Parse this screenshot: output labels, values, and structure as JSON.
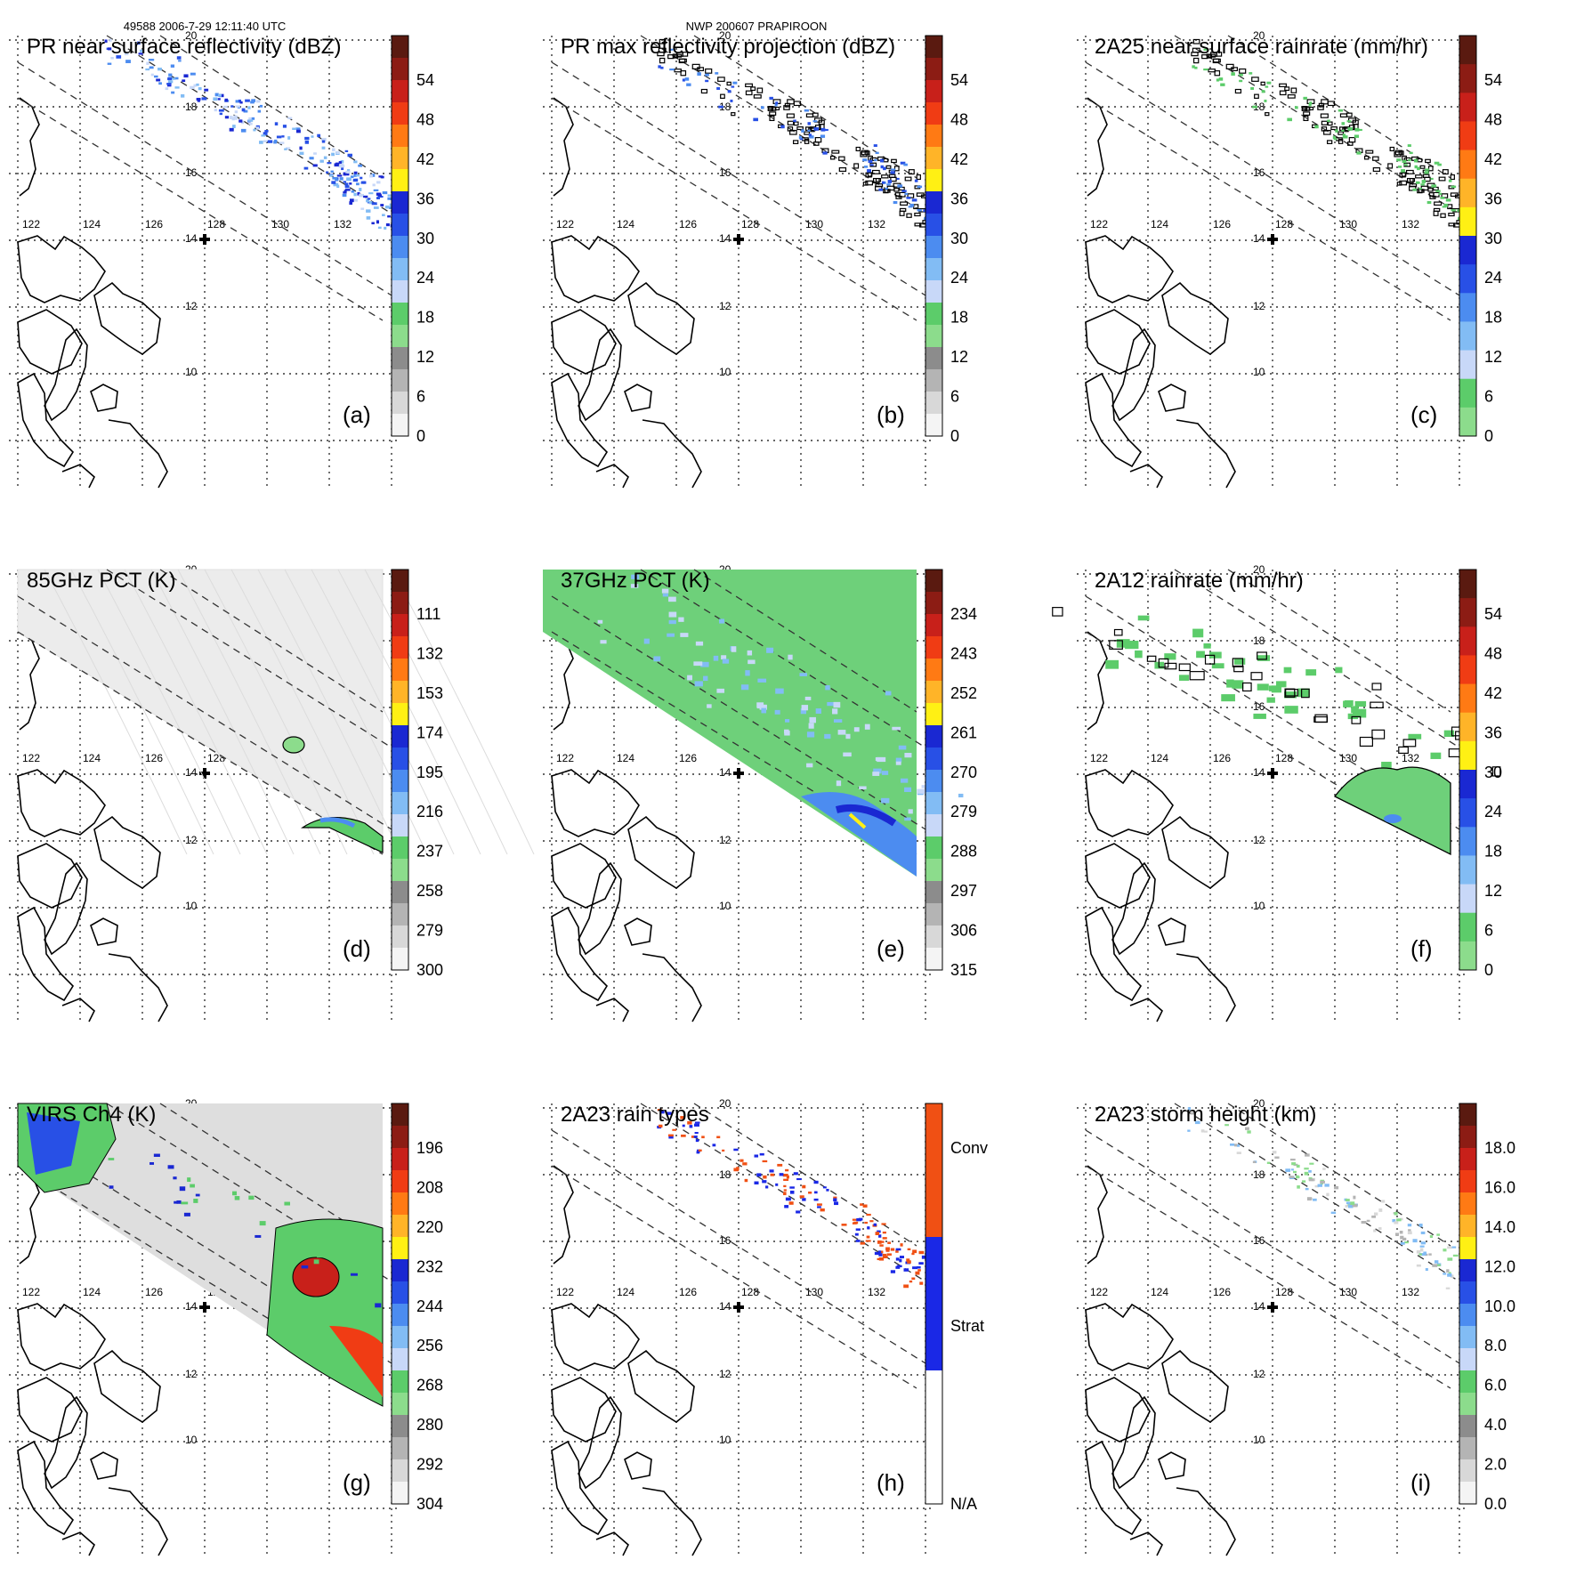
{
  "header": {
    "orbit_info": "49588 2006-7-29 12:11:40 UTC",
    "storm_info": "NWP 200607 PRAPIROON"
  },
  "axes": {
    "lon_labels": [
      "122",
      "124",
      "126",
      "128",
      "130",
      "132"
    ],
    "lat_labels": [
      "20",
      "18",
      "16",
      "14",
      "12",
      "10"
    ]
  },
  "panels": [
    {
      "id": "a",
      "label": "(a)",
      "title": "PR near surface reflectivity (dBZ)",
      "field": "pr",
      "colorbar": {
        "ticks": [
          "54",
          "48",
          "42",
          "36",
          "30",
          "24",
          "18",
          "12",
          "6",
          "0"
        ],
        "colors": [
          "#5a1a10",
          "#8c1c14",
          "#c8201a",
          "#f03c14",
          "#ff7a14",
          "#ffb428",
          "#fff014",
          "#1a28d2",
          "#2850e6",
          "#4c8cf0",
          "#82bcf4",
          "#c8d8f8",
          "#5ccc6a",
          "#8cdc8c",
          "#8c8c8c",
          "#b4b4b4",
          "#d8d8d8",
          "#f4f4f4"
        ]
      }
    },
    {
      "id": "b",
      "label": "(b)",
      "title": "PR max reflectivity projection (dBZ)",
      "field": "pr-outline",
      "colorbar": {
        "ticks": [
          "54",
          "48",
          "42",
          "36",
          "30",
          "24",
          "18",
          "12",
          "6",
          "0"
        ],
        "colors": [
          "#5a1a10",
          "#8c1c14",
          "#c8201a",
          "#f03c14",
          "#ff7a14",
          "#ffb428",
          "#fff014",
          "#1a28d2",
          "#2850e6",
          "#4c8cf0",
          "#82bcf4",
          "#c8d8f8",
          "#5ccc6a",
          "#8cdc8c",
          "#8c8c8c",
          "#b4b4b4",
          "#d8d8d8",
          "#f4f4f4"
        ]
      }
    },
    {
      "id": "c",
      "label": "(c)",
      "title": "2A25 near surface rainrate (mm/hr)",
      "field": "rain-outline",
      "colorbar": {
        "ticks": [
          "54",
          "48",
          "42",
          "36",
          "30",
          "24",
          "18",
          "12",
          "6",
          "0"
        ],
        "colors": [
          "#5a1a10",
          "#8c1c14",
          "#c8201a",
          "#f03c14",
          "#ff7a14",
          "#ffb428",
          "#fff014",
          "#1a28d2",
          "#2850e6",
          "#4c8cf0",
          "#82bcf4",
          "#c8d8f8",
          "#5ccc6a",
          "#8cdc8c"
        ]
      }
    },
    {
      "id": "d",
      "label": "(d)",
      "title": "85GHz PCT (K)",
      "field": "pct85",
      "colorbar": {
        "ticks": [
          "111",
          "132",
          "153",
          "174",
          "195",
          "216",
          "237",
          "258",
          "279",
          "300"
        ],
        "colors": [
          "#5a1a10",
          "#8c1c14",
          "#c8201a",
          "#f03c14",
          "#ff7a14",
          "#ffb428",
          "#fff014",
          "#1a28d2",
          "#2850e6",
          "#4c8cf0",
          "#82bcf4",
          "#c8d8f8",
          "#5ccc6a",
          "#8cdc8c",
          "#8c8c8c",
          "#b4b4b4",
          "#d8d8d8",
          "#f4f4f4"
        ]
      }
    },
    {
      "id": "e",
      "label": "(e)",
      "title": "37GHz PCT (K)",
      "field": "pct37",
      "colorbar": {
        "ticks": [
          "234",
          "243",
          "252",
          "261",
          "270",
          "279",
          "288",
          "297",
          "306",
          "315"
        ],
        "colors": [
          "#5a1a10",
          "#8c1c14",
          "#c8201a",
          "#f03c14",
          "#ff7a14",
          "#ffb428",
          "#fff014",
          "#1a28d2",
          "#2850e6",
          "#4c8cf0",
          "#82bcf4",
          "#c8d8f8",
          "#5ccc6a",
          "#8cdc8c",
          "#8c8c8c",
          "#b4b4b4",
          "#d8d8d8",
          "#f4f4f4"
        ]
      }
    },
    {
      "id": "f",
      "label": "(f)",
      "title": "2A12 rainrate (mm/hr)",
      "field": "rain2a12",
      "colorbar": {
        "ticks": [
          "54",
          "48",
          "42",
          "36",
          "30",
          "24",
          "18",
          "12",
          "6",
          "0"
        ],
        "colors": [
          "#5a1a10",
          "#8c1c14",
          "#c8201a",
          "#f03c14",
          "#ff7a14",
          "#ffb428",
          "#fff014",
          "#1a28d2",
          "#2850e6",
          "#4c8cf0",
          "#82bcf4",
          "#c8d8f8",
          "#5ccc6a",
          "#8cdc8c"
        ]
      }
    },
    {
      "id": "g",
      "label": "(g)",
      "title": "VIRS Ch4 (K)",
      "field": "virs",
      "colorbar": {
        "ticks": [
          "196",
          "208",
          "220",
          "232",
          "244",
          "256",
          "268",
          "280",
          "292",
          "304"
        ],
        "colors": [
          "#5a1a10",
          "#8c1c14",
          "#c8201a",
          "#f03c14",
          "#ff7a14",
          "#ffb428",
          "#fff014",
          "#1a28d2",
          "#2850e6",
          "#4c8cf0",
          "#82bcf4",
          "#c8d8f8",
          "#5ccc6a",
          "#8cdc8c",
          "#8c8c8c",
          "#b4b4b4",
          "#d8d8d8",
          "#f4f4f4"
        ]
      }
    },
    {
      "id": "h",
      "label": "(h)",
      "title": "2A23 rain types",
      "field": "raintype",
      "colorbar": {
        "ticks": [
          "Conv",
          "Strat",
          "N/A"
        ],
        "colors": [
          "#f05014",
          "#1a28e6",
          "#ffffff"
        ]
      }
    },
    {
      "id": "i",
      "label": "(i)",
      "title": "2A23 storm height (km)",
      "field": "height",
      "colorbar": {
        "ticks": [
          "18.0",
          "16.0",
          "14.0",
          "12.0",
          "10.0",
          "8.0",
          "6.0",
          "4.0",
          "2.0",
          "0.0"
        ],
        "colors": [
          "#5a1a10",
          "#8c1c14",
          "#c8201a",
          "#f03c14",
          "#ff7a14",
          "#ffb428",
          "#fff014",
          "#1a28d2",
          "#2850e6",
          "#4c8cf0",
          "#82bcf4",
          "#c8d8f8",
          "#5ccc6a",
          "#8cdc8c",
          "#8c8c8c",
          "#b4b4b4",
          "#d8d8d8",
          "#f4f4f4"
        ]
      }
    }
  ]
}
